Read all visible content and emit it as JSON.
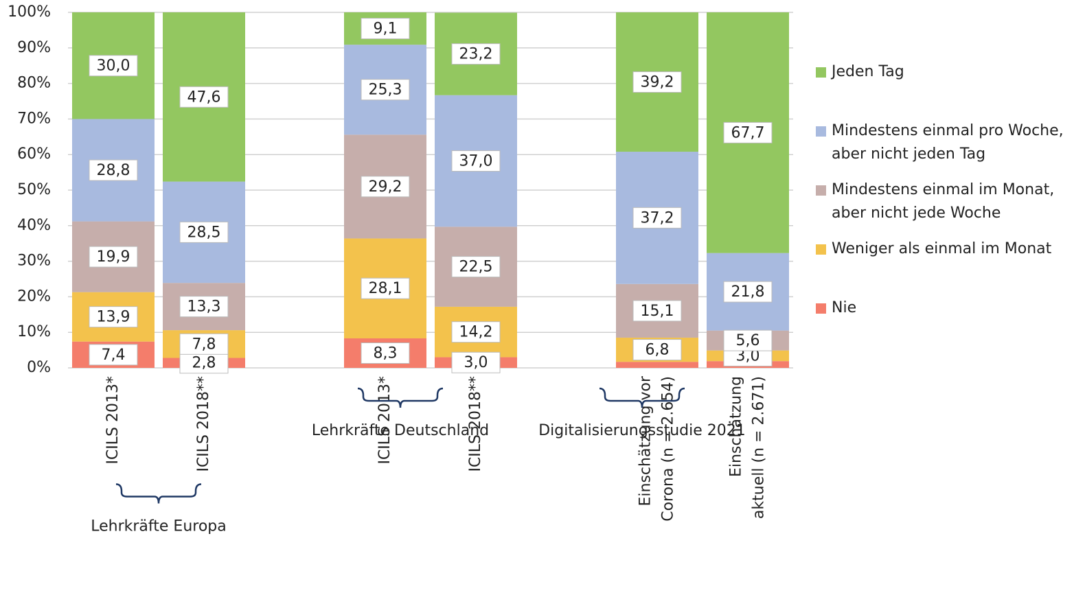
{
  "chart_data": {
    "type": "stacked_bar",
    "categories": [
      [
        "ICILS 2013*"
      ],
      [
        "ICILS 2018**"
      ],
      null,
      [
        "ICILS 2013*"
      ],
      [
        "ICILS 2018**"
      ],
      null,
      [
        "Einschätzung vor",
        "Corona (n = 2.654)"
      ],
      [
        "Einschätzung",
        "aktuell (n = 2.671)"
      ]
    ],
    "groups": [
      "Lehrkräfte Europa",
      "Lehrkräfte Deutschland",
      "Digitalisierungsstudie 2021"
    ],
    "series": [
      {
        "name": "Nie",
        "color": "#f47d6b",
        "values": [
          7.4,
          2.8,
          null,
          8.3,
          3.0,
          null,
          1.7,
          1.9
        ],
        "value_labels": [
          "7,4",
          "2,8",
          null,
          "8,3",
          "3,0",
          null,
          null,
          null
        ]
      },
      {
        "name": "Weniger als einmal im Monat",
        "color": "#f3c24c",
        "values": [
          13.9,
          7.8,
          null,
          28.1,
          14.2,
          null,
          6.8,
          3.0
        ],
        "value_labels": [
          "13,9",
          "7,8",
          null,
          "28,1",
          "14,2",
          null,
          "6,8",
          "3,0"
        ]
      },
      {
        "name": "Mindestens einmal im Monat, aber nicht jede Woche",
        "color": "#c6aeab",
        "values": [
          19.9,
          13.3,
          null,
          29.2,
          22.5,
          null,
          15.1,
          5.6
        ],
        "value_labels": [
          "19,9",
          "13,3",
          null,
          "29,2",
          "22,5",
          null,
          "15,1",
          "5,6"
        ]
      },
      {
        "name": "Mindestens einmal pro Woche, aber nicht jeden Tag",
        "color": "#a8badf",
        "values": [
          28.8,
          28.5,
          null,
          25.3,
          37.0,
          null,
          37.2,
          21.8
        ],
        "value_labels": [
          "28,8",
          "28,5",
          null,
          "25,3",
          "37,0",
          null,
          "37,2",
          "21,8"
        ]
      },
      {
        "name": "Jeden Tag",
        "color": "#93c760",
        "values": [
          30.0,
          47.6,
          null,
          9.1,
          23.2,
          null,
          39.2,
          67.7
        ],
        "value_labels": [
          "30,0",
          "47,6",
          null,
          "9,1",
          "23,2",
          null,
          "39,2",
          "67,7"
        ]
      }
    ],
    "ylim": [
      0,
      100
    ],
    "yticks": [
      {
        "value": 0,
        "label": "0%"
      },
      {
        "value": 10,
        "label": "10%"
      },
      {
        "value": 20,
        "label": "20%"
      },
      {
        "value": 30,
        "label": "30%"
      },
      {
        "value": 40,
        "label": "40%"
      },
      {
        "value": 50,
        "label": "50%"
      },
      {
        "value": 60,
        "label": "60%"
      },
      {
        "value": 70,
        "label": "70%"
      },
      {
        "value": 80,
        "label": "80%"
      },
      {
        "value": 90,
        "label": "90%"
      },
      {
        "value": 100,
        "label": "100%"
      }
    ],
    "grid": true
  }
}
